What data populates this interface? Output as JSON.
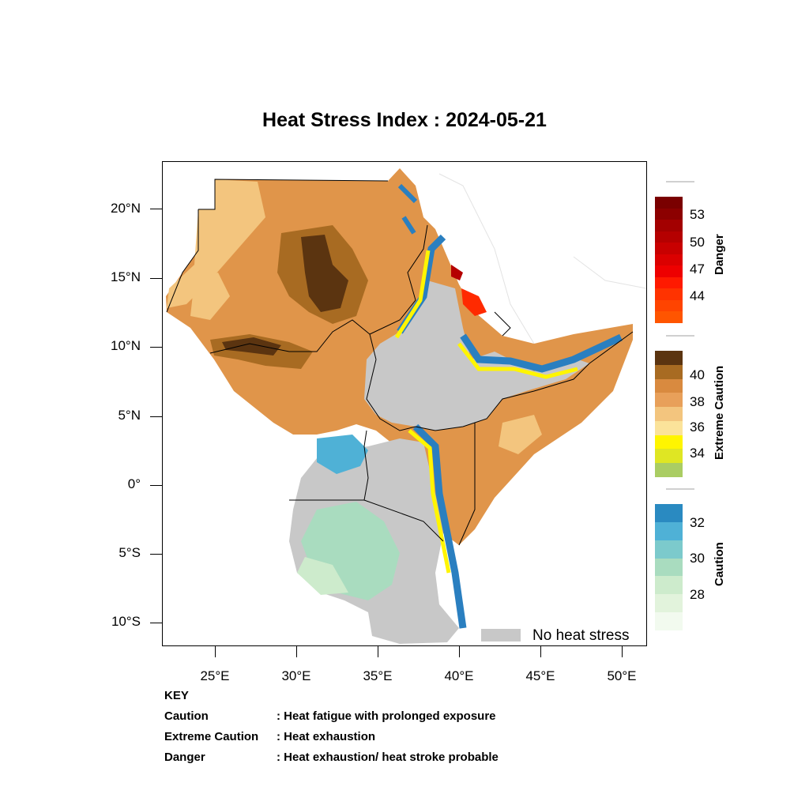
{
  "title": "Heat Stress Index : 2024-05-21",
  "axes": {
    "lat_ticks": [
      "20°N",
      "15°N",
      "10°N",
      "5°N",
      "0°",
      "5°S",
      "10°S"
    ],
    "lon_ticks": [
      "25°E",
      "30°E",
      "35°E",
      "40°E",
      "45°E",
      "50°E"
    ]
  },
  "legend": {
    "danger": {
      "title": "Danger",
      "values": [
        "53",
        "50",
        "47",
        "44"
      ],
      "colors": [
        "#7a0000",
        "#8c0000",
        "#a30000",
        "#b50000",
        "#c80000",
        "#db0000",
        "#ee0000",
        "#ff1a00",
        "#ff3300",
        "#ff4400",
        "#ff5500"
      ]
    },
    "extreme": {
      "title": "Extreme Caution",
      "values": [
        "40",
        "38",
        "36",
        "34"
      ],
      "colors": [
        "#5b3410",
        "#a86b22",
        "#d98a3f",
        "#e8a05a",
        "#f3c57e",
        "#fbe39a",
        "#fff500",
        "#dfe623",
        "#aacd63"
      ]
    },
    "caution": {
      "title": "Caution",
      "values": [
        "32",
        "30",
        "28"
      ],
      "colors": [
        "#2a8ac1",
        "#4fb1d6",
        "#7ccacc",
        "#a9dcbf",
        "#cdebcc",
        "#e2f3dc",
        "#f2faef"
      ]
    },
    "no_heat_stress": "No heat stress"
  },
  "key": {
    "heading": "KEY",
    "rows": [
      {
        "term": "Caution",
        "desc": ": Heat fatigue with prolonged exposure"
      },
      {
        "term": "Extreme Caution",
        "desc": " : Heat exhaustion"
      },
      {
        "term": "Danger",
        "desc": ": Heat exhaustion/ heat stroke probable"
      }
    ]
  },
  "colors": {
    "no_stress": "#c8c8c8",
    "caution_blue": "#2a7fc0",
    "yellow": "#fff500",
    "orange": "#e0954a",
    "light_orange": "#f3c57e",
    "brown": "#a86b22",
    "dark_brown": "#5b3410",
    "red": "#ff2a00"
  }
}
